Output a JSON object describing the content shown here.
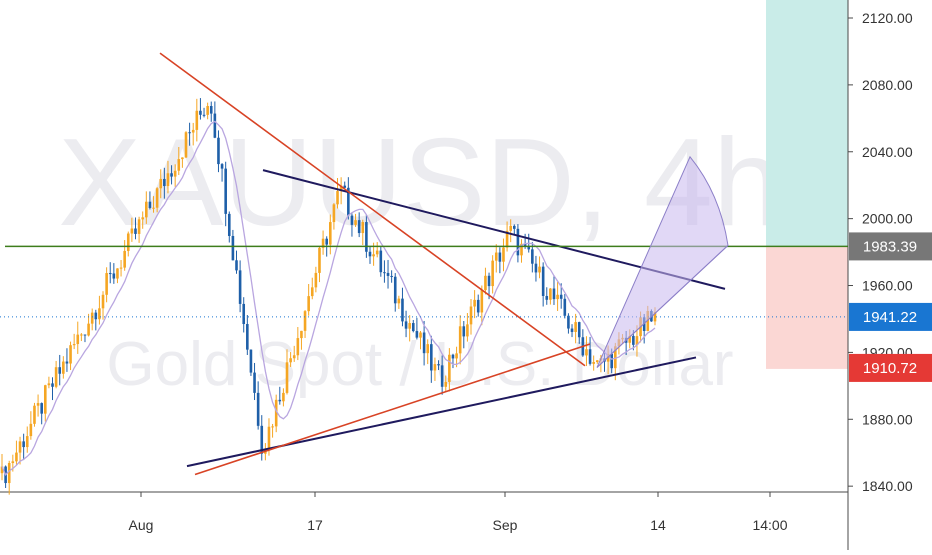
{
  "watermark": {
    "symbol": "XAUUSD, 4h",
    "description": "Gold Spot / U.S. Dollar"
  },
  "colors": {
    "bull": "#f5a623",
    "bear": "#1e5fa8",
    "ma": "#b9a6e0",
    "upper_trend": "#1f1a5e",
    "lower_trend": "#1f1a5e",
    "red_line": "#d84325",
    "target_zone": "#c9ece8",
    "stop_zone": "#fbd7d4",
    "green_line": "#3d7d1c",
    "price_badge": "#1976d2",
    "stop_badge": "#e53935",
    "target_badge": "#777777",
    "projection": "#c8b8ee"
  },
  "chart_data": {
    "type": "candlestick",
    "symbol": "XAUUSD",
    "timeframe": "4h",
    "y_axis": {
      "ticks": [
        2120.0,
        2080.0,
        2040.0,
        2000.0,
        1960.0,
        1920.0,
        1880.0,
        1840.0
      ],
      "tick_labels": [
        "2120.00",
        "2080.00",
        "2040.00",
        "2000.00",
        "1960.00",
        "1920.00",
        "1880.00",
        "1840.00"
      ],
      "range": [
        1833,
        2130
      ]
    },
    "x_axis": {
      "tick_labels": [
        "Aug",
        "17",
        "Sep",
        "14",
        "14:00"
      ]
    },
    "price_labels": {
      "target": "1983.39",
      "current": "1941.22",
      "stop": "1910.72"
    },
    "horizontal_line": 1983.39,
    "swing_points": [
      {
        "label": "start",
        "price": 1845
      },
      {
        "label": "peak",
        "price": 2073
      },
      {
        "label": "swing_low",
        "price": 1862
      },
      {
        "label": "lower_high",
        "price": 2017
      },
      {
        "label": "low",
        "price": 1903
      },
      {
        "label": "high",
        "price": 1992
      },
      {
        "label": "low",
        "price": 1911
      },
      {
        "label": "last",
        "price": 1941
      }
    ],
    "trendlines": [
      {
        "name": "upper",
        "from": 2029,
        "to": 1958
      },
      {
        "name": "lower",
        "from": 1852,
        "to": 1917
      },
      {
        "name": "red_down",
        "from": 2099,
        "to": 1912
      },
      {
        "name": "red_up",
        "from": 1847,
        "to": 1925
      }
    ],
    "position": {
      "entry": 1941.22,
      "target_top": 2130,
      "target_bottom": 1983.39,
      "stop": 1910.72
    }
  }
}
